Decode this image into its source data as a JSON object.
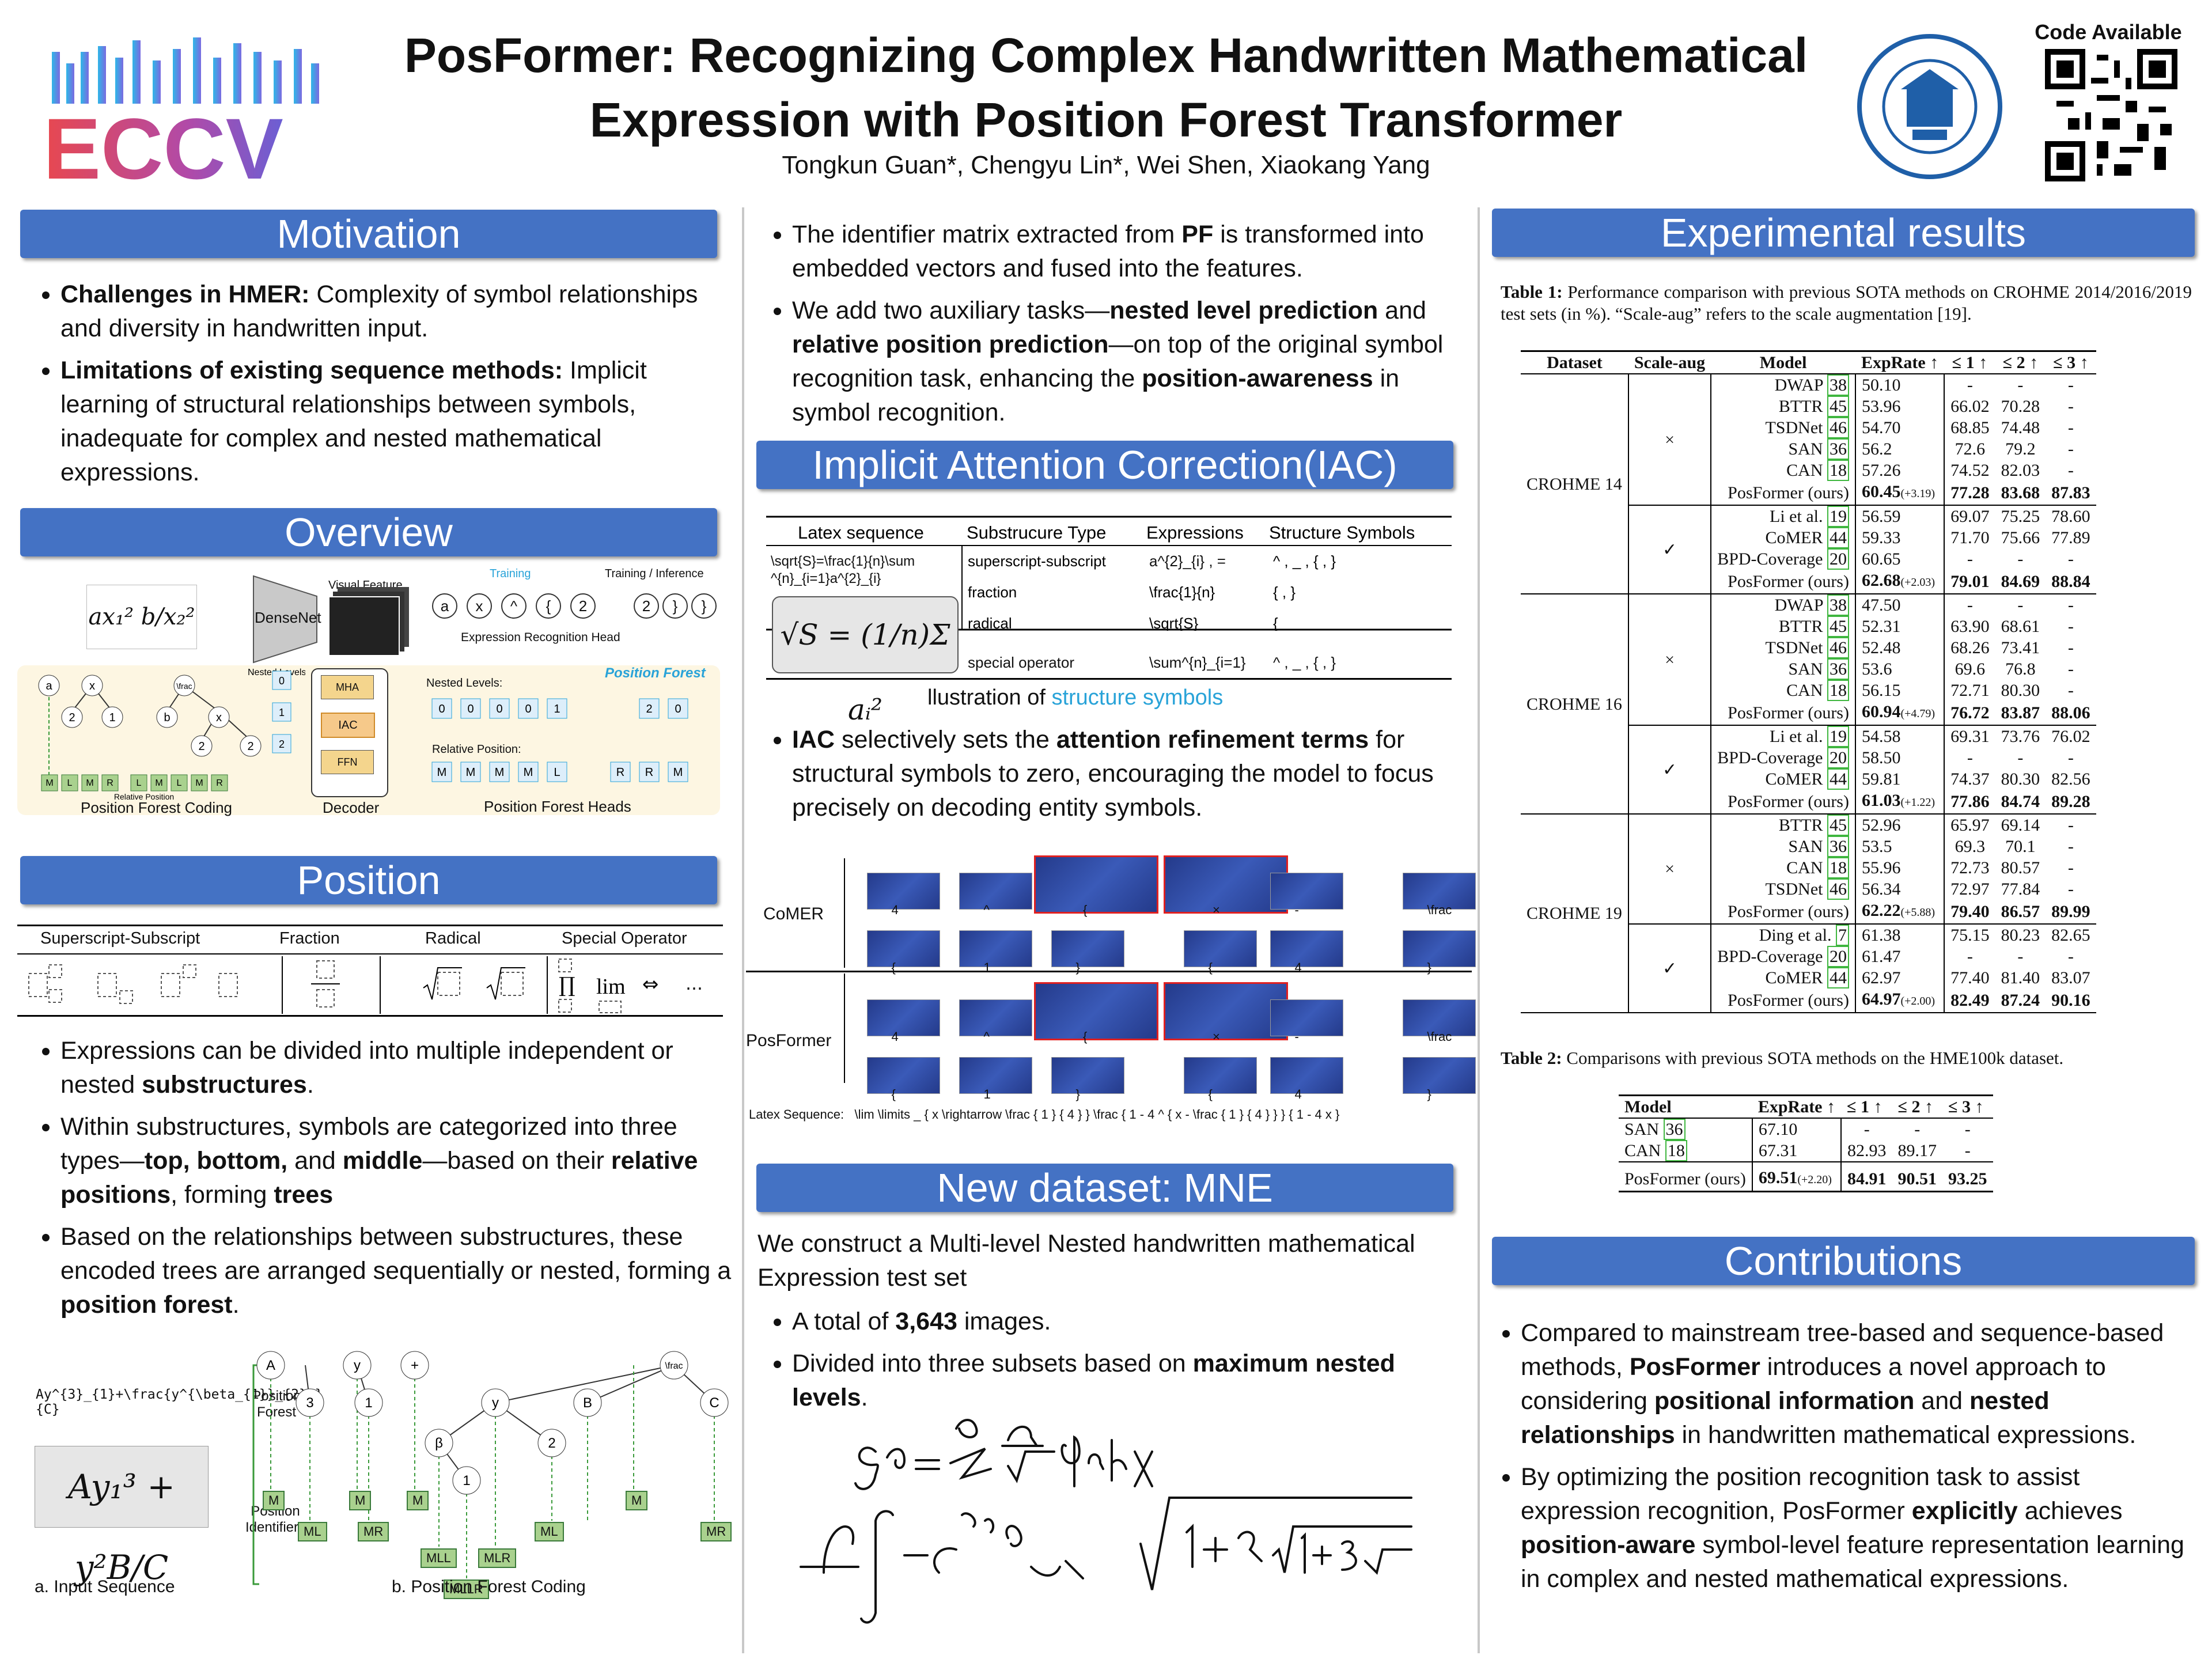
{
  "header": {
    "title_line1": "PosFormer: Recognizing Complex Handwritten Mathematical",
    "title_line2": "Expression with Position Forest Transformer",
    "authors": "Tongkun Guan*, Chengyu Lin*, Wei Shen, Xiaokang Yang",
    "conference": "ECCV",
    "code_label": "Code Available"
  },
  "motivation": {
    "heading": "Motivation",
    "items": [
      {
        "bold": "Challenges in HMER:",
        "text": " Complexity of symbol relationships and diversity in handwritten input."
      },
      {
        "bold": "Limitations of existing sequence methods:",
        "text": " Implicit learning of structural relationships between symbols, inadequate for complex and nested mathematical expressions."
      }
    ]
  },
  "overview": {
    "heading": "Overview",
    "labels": [
      "DenseNet",
      "Visual Feature",
      "Training",
      "Training / Inference",
      "Expression Recognition Head",
      "Position Forest",
      "Nested Levels:",
      "Relative Position:",
      "MHA",
      "IAC",
      "FFN",
      "Decoder",
      "Position Forest Coding",
      "Position Forest Heads",
      "Nested Levels",
      "Relative Position"
    ]
  },
  "position": {
    "heading": "Position",
    "types": [
      "Superscript-Subscript",
      "Fraction",
      "Radical",
      "Special Operator"
    ],
    "op_text": "lim",
    "items": [
      [
        {
          "t": "Expressions can be divided into multiple independent or nested "
        },
        {
          "b": "substructures"
        },
        {
          "t": "."
        }
      ],
      [
        {
          "t": "Within substructures, symbols are categorized into three types—"
        },
        {
          "b": "top, bottom,"
        },
        {
          "t": " and "
        },
        {
          "b": "middle"
        },
        {
          "t": "—based on their "
        },
        {
          "b": "relative positions"
        },
        {
          "t": ", forming "
        },
        {
          "b": "trees"
        }
      ],
      [
        {
          "t": "Based on the relationships between substructures, these encoded trees are arranged sequentially or nested, forming a "
        },
        {
          "b": "position forest"
        },
        {
          "t": "."
        }
      ]
    ],
    "input_latex": "Ay^{3}_{1}+\\frac{y^{\\beta_{1}}_{2}B}{C}",
    "arrow_label": "Position Forest",
    "id_label": "Position Identifiers",
    "caption_a": "a. Input Sequence",
    "caption_b": "b. Position Forest Coding",
    "tags": [
      "M",
      "ML",
      "M",
      "MR",
      "M",
      "MLL",
      "MLLR",
      "MLR",
      "ML",
      "M",
      "MR"
    ]
  },
  "middle": {
    "intro_items": [
      [
        {
          "t": "The identifier matrix extracted from "
        },
        {
          "b": "PF"
        },
        {
          "t": " is transformed into embedded vectors and fused into the features."
        }
      ],
      [
        {
          "t": "We add two auxiliary tasks—"
        },
        {
          "b": "nested level prediction"
        },
        {
          "t": " and "
        },
        {
          "b": "relative position prediction"
        },
        {
          "t": "—on top of the original symbol recognition task, enhancing the "
        },
        {
          "b": "position-awareness"
        },
        {
          "t": " in symbol recognition."
        }
      ]
    ],
    "iac_heading": "Implicit Attention Correction(IAC)",
    "struct_table": {
      "headers": [
        "Latex sequence",
        "Substrucure Type",
        "Expressions",
        "Structure Symbols"
      ],
      "latex": "\\sqrt{S}=\\frac{1}{n}\\sum ^{n}_{i=1}a^{2}_{i}",
      "rows": [
        [
          "superscript-subscript",
          "a^{2}_{i} , =",
          "^ , _ , { , }"
        ],
        [
          "fraction",
          "\\frac{1}{n}",
          "{ , }"
        ],
        [
          "radical",
          "\\sqrt{S}",
          "{"
        ],
        [
          "special operator",
          "\\sum^{n}_{i=1}",
          "^ , _ , { , }"
        ]
      ],
      "caption_prefix": "llustration of ",
      "caption_highlight": "structure symbols"
    },
    "iac_items": [
      [
        {
          "b": "IAC"
        },
        {
          "t": " selectively sets the "
        },
        {
          "b": "attention refinement terms"
        },
        {
          "t": " for structural symbols to zero, encouraging the model to focus precisely on decoding entity symbols."
        }
      ]
    ],
    "attn": {
      "row_labels": [
        "CoMER",
        "PosFormer"
      ],
      "top_tokens": [
        "4",
        "^",
        "{",
        "×",
        "-",
        "\\frac"
      ],
      "bottom_tokens": [
        "{",
        "1",
        "}",
        "{",
        "4",
        "}"
      ],
      "latex_label": "Latex Sequence:",
      "latex_seq": "\\lim \\limits _ { x \\rightarrow \\frac { 1 } { 4 } } \\frac { 1 - 4 ^ { x - \\frac { 1 } { 4 } } } { 1 - 4 x }"
    },
    "mne_heading": "New dataset: MNE",
    "mne_intro": "We construct a Multi-level Nested handwritten mathematical Expression test set",
    "mne_items": [
      [
        {
          "t": "A total of "
        },
        {
          "b": "3,643"
        },
        {
          "t": " images."
        }
      ],
      [
        {
          "t": "Divided into three subsets based on "
        },
        {
          "b": "maximum nested levels"
        },
        {
          "t": "."
        }
      ]
    ]
  },
  "results": {
    "heading": "Experimental results",
    "table1_caption_bold": "Table 1:",
    "table1_caption": " Performance comparison with previous SOTA methods on CROHME 2014/2016/2019 test sets (in %). “Scale-aug” refers to the scale augmentation [19].",
    "table1_headers": [
      "Dataset",
      "Scale-aug",
      "Model",
      "ExpRate ↑",
      "≤ 1 ↑",
      "≤ 2 ↑",
      "≤ 3 ↑"
    ],
    "table1_groups": [
      {
        "dataset": "CROHME 14",
        "blocks": [
          {
            "aug": "×",
            "rows": [
              [
                "DWAP [38]",
                "50.10",
                "",
                "-",
                "-",
                "-"
              ],
              [
                "BTTR [45]",
                "53.96",
                "",
                "66.02",
                "70.28",
                "-"
              ],
              [
                "TSDNet [46]",
                "54.70",
                "",
                "68.85",
                "74.48",
                "-"
              ],
              [
                "SAN [36]",
                "56.2",
                "",
                "72.6",
                "79.2",
                "-"
              ],
              [
                "CAN [18]",
                "57.26",
                "",
                "74.52",
                "82.03",
                "-"
              ],
              [
                "PosFormer (ours)",
                "60.45",
                "(+3.19)",
                "77.28",
                "83.68",
                "87.83"
              ]
            ]
          },
          {
            "aug": "✓",
            "rows": [
              [
                "Li et al. [19]",
                "56.59",
                "",
                "69.07",
                "75.25",
                "78.60"
              ],
              [
                "CoMER [44]",
                "59.33",
                "",
                "71.70",
                "75.66",
                "77.89"
              ],
              [
                "BPD-Coverage [20]",
                "60.65",
                "",
                "-",
                "-",
                "-"
              ],
              [
                "PosFormer (ours)",
                "62.68",
                "(+2.03)",
                "79.01",
                "84.69",
                "88.84"
              ]
            ]
          }
        ]
      },
      {
        "dataset": "CROHME 16",
        "blocks": [
          {
            "aug": "×",
            "rows": [
              [
                "DWAP [38]",
                "47.50",
                "",
                "-",
                "-",
                "-"
              ],
              [
                "BTTR [45]",
                "52.31",
                "",
                "63.90",
                "68.61",
                "-"
              ],
              [
                "TSDNet [46]",
                "52.48",
                "",
                "68.26",
                "73.41",
                "-"
              ],
              [
                "SAN [36]",
                "53.6",
                "",
                "69.6",
                "76.8",
                "-"
              ],
              [
                "CAN [18]",
                "56.15",
                "",
                "72.71",
                "80.30",
                "-"
              ],
              [
                "PosFormer (ours)",
                "60.94",
                "(+4.79)",
                "76.72",
                "83.87",
                "88.06"
              ]
            ]
          },
          {
            "aug": "✓",
            "rows": [
              [
                "Li et al. [19]",
                "54.58",
                "",
                "69.31",
                "73.76",
                "76.02"
              ],
              [
                "BPD-Coverage [20]",
                "58.50",
                "",
                "-",
                "-",
                "-"
              ],
              [
                "CoMER [44]",
                "59.81",
                "",
                "74.37",
                "80.30",
                "82.56"
              ],
              [
                "PosFormer (ours)",
                "61.03",
                "(+1.22)",
                "77.86",
                "84.74",
                "89.28"
              ]
            ]
          }
        ]
      },
      {
        "dataset": "CROHME 19",
        "blocks": [
          {
            "aug": "×",
            "rows": [
              [
                "BTTR [45]",
                "52.96",
                "",
                "65.97",
                "69.14",
                "-"
              ],
              [
                "SAN [36]",
                "53.5",
                "",
                "69.3",
                "70.1",
                "-"
              ],
              [
                "CAN [18]",
                "55.96",
                "",
                "72.73",
                "80.57",
                "-"
              ],
              [
                "TSDNet [46]",
                "56.34",
                "",
                "72.97",
                "77.84",
                "-"
              ],
              [
                "PosFormer (ours)",
                "62.22",
                "(+5.88)",
                "79.40",
                "86.57",
                "89.99"
              ]
            ]
          },
          {
            "aug": "✓",
            "rows": [
              [
                "Ding et al. [7]",
                "61.38",
                "",
                "75.15",
                "80.23",
                "82.65"
              ],
              [
                "BPD-Coverage [20]",
                "61.47",
                "",
                "-",
                "-",
                "-"
              ],
              [
                "CoMER [44]",
                "62.97",
                "",
                "77.40",
                "81.40",
                "83.07"
              ],
              [
                "PosFormer (ours)",
                "64.97",
                "(+2.00)",
                "82.49",
                "87.24",
                "90.16"
              ]
            ]
          }
        ]
      }
    ],
    "table2_caption_bold": "Table 2:",
    "table2_caption": " Comparisons with previous SOTA methods on the HME100k dataset.",
    "table2_headers": [
      "Model",
      "ExpRate ↑",
      "≤ 1 ↑",
      "≤ 2 ↑",
      "≤ 3 ↑"
    ],
    "table2_rows": [
      [
        "SAN [36]",
        "67.10",
        "",
        "-",
        "-",
        "-"
      ],
      [
        "CAN [18]",
        "67.31",
        "",
        "82.93",
        "89.17",
        "-"
      ],
      [
        "PosFormer (ours)",
        "69.51",
        "(+2.20)",
        "84.91",
        "90.51",
        "93.25"
      ]
    ]
  },
  "contributions": {
    "heading": "Contributions",
    "items": [
      [
        {
          "t": "Compared to mainstream tree-based and sequence-based methods, "
        },
        {
          "b": "PosFormer"
        },
        {
          "t": " introduces a novel approach to considering "
        },
        {
          "b": "positional information"
        },
        {
          "t": " and "
        },
        {
          "b": "nested relationships"
        },
        {
          "t": " in handwritten mathematical expressions."
        }
      ],
      [
        {
          "t": "By optimizing the position recognition task to assist expression recognition, PosFormer "
        },
        {
          "b": "explicitly"
        },
        {
          "t": " achieves "
        },
        {
          "b": "position-aware"
        },
        {
          "t": " symbol-level feature representation learning in complex and nested mathematical expressions."
        }
      ]
    ]
  },
  "colors": {
    "banner": "#4472c4",
    "accent": "#29a3d8",
    "highlight_red": "#e02020",
    "tag_green": "#a9d18e"
  }
}
